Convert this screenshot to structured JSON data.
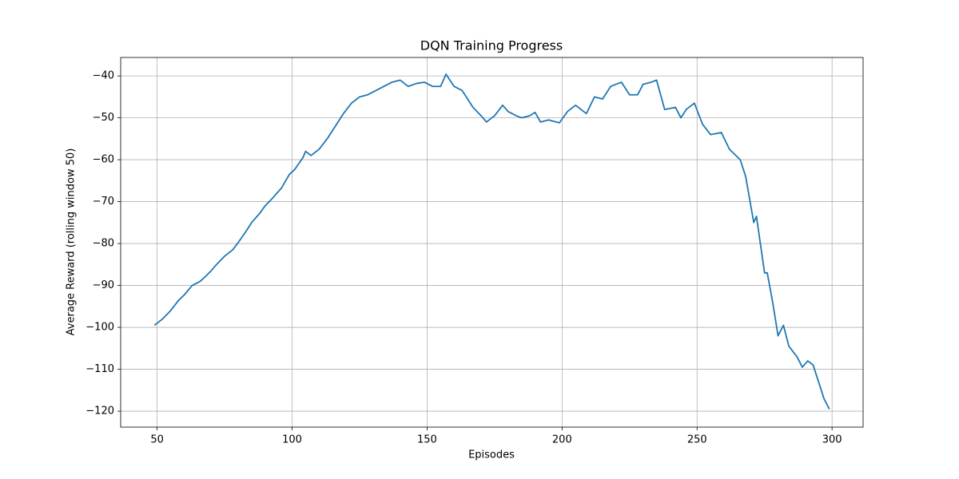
{
  "chart_data": {
    "type": "line",
    "title": "DQN Training Progress",
    "x_label": "Episodes",
    "y_label": "Average Reward (rolling window 50)",
    "x": [
      49,
      52,
      55,
      58,
      60,
      63,
      66,
      68,
      70,
      72,
      75,
      78,
      80,
      83,
      85,
      88,
      90,
      93,
      96,
      99,
      101,
      104,
      105,
      107,
      110,
      113,
      116,
      119,
      122,
      125,
      128,
      131,
      134,
      137,
      140,
      143,
      146,
      149,
      152,
      155,
      157,
      160,
      163,
      167,
      170,
      172,
      175,
      178,
      180,
      183,
      185,
      188,
      190,
      192,
      195,
      199,
      202,
      205,
      209,
      212,
      215,
      218,
      222,
      225,
      228,
      230,
      233,
      235,
      238,
      242,
      244,
      246,
      249,
      252,
      255,
      259,
      262,
      266,
      268,
      271,
      272,
      275,
      276,
      278,
      280,
      282,
      284,
      287,
      289,
      291,
      293,
      295,
      297,
      299
    ],
    "series": [
      {
        "name": "Average Reward",
        "color": "#1f77b4",
        "values": [
          -99.5,
          -98,
          -96,
          -93.5,
          -92.3,
          -90,
          -89,
          -87.8,
          -86.5,
          -85,
          -83,
          -81.5,
          -79.8,
          -77,
          -75,
          -72.8,
          -71,
          -69,
          -66.8,
          -63.5,
          -62.3,
          -59.5,
          -58,
          -59,
          -57.5,
          -55,
          -52,
          -49,
          -46.5,
          -45,
          -44.5,
          -43.5,
          -42.5,
          -41.5,
          -41,
          -42.5,
          -41.8,
          -41.5,
          -42.5,
          -42.5,
          -39.6,
          -42.5,
          -43.5,
          -47.5,
          -49.5,
          -51,
          -49.5,
          -47,
          -48.5,
          -49.5,
          -50,
          -49.5,
          -48.7,
          -51,
          -50.5,
          -51.2,
          -48.5,
          -47,
          -49,
          -45,
          -45.5,
          -42.5,
          -41.5,
          -44.5,
          -44.5,
          -42,
          -41.5,
          -41,
          -48,
          -47.5,
          -50,
          -48,
          -46.5,
          -51.5,
          -54,
          -53.5,
          -57.5,
          -60,
          -64,
          -75,
          -73.5,
          -87,
          -87,
          -94,
          -102,
          -99.5,
          -104.5,
          -107,
          -109.5,
          -108,
          -109,
          -113,
          -117,
          -119.5
        ]
      }
    ],
    "xlim": [
      36.5,
      311.5
    ],
    "ylim": [
      -123.8,
      -35.6
    ],
    "xticks": [
      50,
      100,
      150,
      200,
      250,
      300
    ],
    "yticks": [
      {
        "value": -120,
        "label": "−120"
      },
      {
        "value": -110,
        "label": "−110"
      },
      {
        "value": -100,
        "label": "−100"
      },
      {
        "value": -90,
        "label": "−90"
      },
      {
        "value": -80,
        "label": "−80"
      },
      {
        "value": -70,
        "label": "−70"
      },
      {
        "value": -60,
        "label": "−60"
      },
      {
        "value": -50,
        "label": "−50"
      },
      {
        "value": -40,
        "label": "−40"
      }
    ],
    "grid": true
  }
}
